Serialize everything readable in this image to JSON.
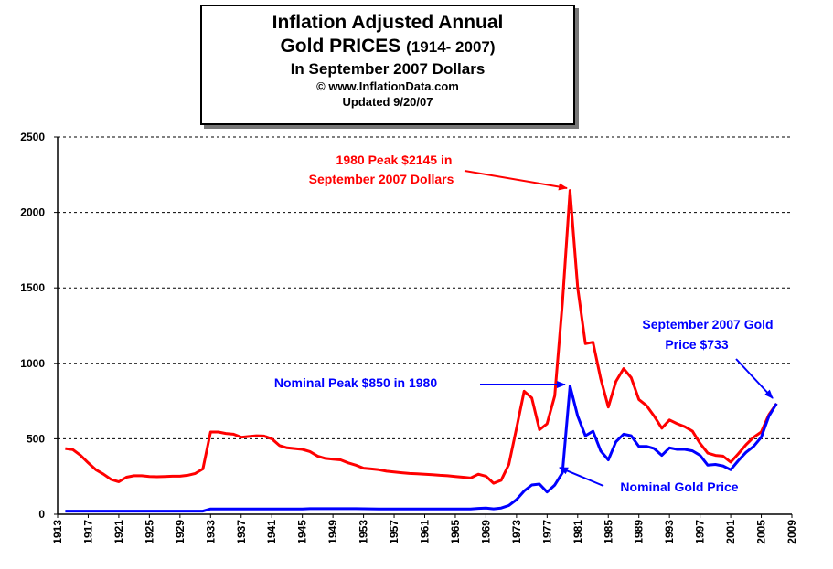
{
  "title": {
    "line1": "Inflation Adjusted Annual",
    "line2_main": "Gold PRICES",
    "line2_range": "(1914- 2007)",
    "line3": "In September 2007 Dollars",
    "line4": "© www.InflationData.com",
    "line5": "Updated 9/20/07"
  },
  "annotations": {
    "peak_real_1": "1980 Peak $2145 in",
    "peak_real_2": "September 2007 Dollars",
    "nominal_peak": "Nominal Peak $850 in 1980",
    "sept2007_1": "September 2007 Gold",
    "sept2007_2": "Price $733",
    "nominal_label": "Nominal Gold Price"
  },
  "colors": {
    "real": "#ff0000",
    "nominal": "#0000ff",
    "grid": "#000000",
    "axis": "#000000"
  },
  "chart_data": {
    "type": "line",
    "xlim": [
      1913,
      2009
    ],
    "ylim": [
      0,
      2500
    ],
    "x_ticks": [
      1913,
      1917,
      1921,
      1925,
      1929,
      1933,
      1937,
      1941,
      1945,
      1949,
      1953,
      1957,
      1961,
      1965,
      1969,
      1973,
      1977,
      1981,
      1985,
      1989,
      1993,
      1997,
      2001,
      2005,
      2009
    ],
    "y_ticks": [
      0,
      500,
      1000,
      1500,
      2000,
      2500
    ],
    "grid": "horizontal dashed",
    "series": [
      {
        "key": "real",
        "points": [
          [
            1914,
            435
          ],
          [
            1915,
            428
          ],
          [
            1916,
            390
          ],
          [
            1917,
            340
          ],
          [
            1918,
            295
          ],
          [
            1919,
            265
          ],
          [
            1920,
            230
          ],
          [
            1921,
            215
          ],
          [
            1922,
            245
          ],
          [
            1923,
            255
          ],
          [
            1924,
            255
          ],
          [
            1925,
            250
          ],
          [
            1926,
            248
          ],
          [
            1927,
            250
          ],
          [
            1928,
            252
          ],
          [
            1929,
            252
          ],
          [
            1930,
            258
          ],
          [
            1931,
            270
          ],
          [
            1932,
            300
          ],
          [
            1933,
            545
          ],
          [
            1934,
            545
          ],
          [
            1935,
            535
          ],
          [
            1936,
            530
          ],
          [
            1937,
            510
          ],
          [
            1938,
            515
          ],
          [
            1939,
            520
          ],
          [
            1940,
            518
          ],
          [
            1941,
            500
          ],
          [
            1942,
            455
          ],
          [
            1943,
            440
          ],
          [
            1944,
            435
          ],
          [
            1945,
            430
          ],
          [
            1946,
            415
          ],
          [
            1947,
            385
          ],
          [
            1948,
            370
          ],
          [
            1949,
            365
          ],
          [
            1950,
            360
          ],
          [
            1951,
            340
          ],
          [
            1952,
            325
          ],
          [
            1953,
            305
          ],
          [
            1954,
            300
          ],
          [
            1955,
            295
          ],
          [
            1956,
            285
          ],
          [
            1957,
            280
          ],
          [
            1958,
            275
          ],
          [
            1959,
            270
          ],
          [
            1960,
            268
          ],
          [
            1961,
            265
          ],
          [
            1962,
            262
          ],
          [
            1963,
            258
          ],
          [
            1964,
            255
          ],
          [
            1965,
            250
          ],
          [
            1966,
            245
          ],
          [
            1967,
            240
          ],
          [
            1968,
            265
          ],
          [
            1969,
            252
          ],
          [
            1970,
            205
          ],
          [
            1971,
            225
          ],
          [
            1972,
            330
          ],
          [
            1973,
            570
          ],
          [
            1974,
            815
          ],
          [
            1975,
            770
          ],
          [
            1976,
            560
          ],
          [
            1977,
            600
          ],
          [
            1978,
            785
          ],
          [
            1979,
            1400
          ],
          [
            1980,
            2145
          ],
          [
            1981,
            1500
          ],
          [
            1982,
            1130
          ],
          [
            1983,
            1140
          ],
          [
            1984,
            900
          ],
          [
            1985,
            710
          ],
          [
            1986,
            880
          ],
          [
            1987,
            965
          ],
          [
            1988,
            905
          ],
          [
            1989,
            760
          ],
          [
            1990,
            720
          ],
          [
            1991,
            650
          ],
          [
            1992,
            570
          ],
          [
            1993,
            625
          ],
          [
            1994,
            600
          ],
          [
            1995,
            580
          ],
          [
            1996,
            550
          ],
          [
            1997,
            470
          ],
          [
            1998,
            405
          ],
          [
            1999,
            390
          ],
          [
            2000,
            385
          ],
          [
            2001,
            345
          ],
          [
            2002,
            400
          ],
          [
            2003,
            460
          ],
          [
            2004,
            510
          ],
          [
            2005,
            545
          ],
          [
            2006,
            660
          ],
          [
            2007,
            733
          ]
        ]
      },
      {
        "key": "nominal",
        "points": [
          [
            1914,
            20.67
          ],
          [
            1920,
            20.67
          ],
          [
            1932,
            20.67
          ],
          [
            1933,
            35
          ],
          [
            1945,
            35
          ],
          [
            1946,
            37
          ],
          [
            1952,
            37
          ],
          [
            1955,
            35
          ],
          [
            1967,
            35
          ],
          [
            1968,
            39
          ],
          [
            1969,
            41
          ],
          [
            1970,
            36
          ],
          [
            1971,
            41
          ],
          [
            1972,
            58
          ],
          [
            1973,
            97
          ],
          [
            1974,
            154
          ],
          [
            1975,
            194
          ],
          [
            1976,
            200
          ],
          [
            1977,
            147
          ],
          [
            1978,
            193
          ],
          [
            1979,
            275
          ],
          [
            1980,
            850
          ],
          [
            1981,
            650
          ],
          [
            1982,
            520
          ],
          [
            1983,
            550
          ],
          [
            1984,
            420
          ],
          [
            1985,
            360
          ],
          [
            1986,
            480
          ],
          [
            1987,
            530
          ],
          [
            1988,
            520
          ],
          [
            1989,
            450
          ],
          [
            1990,
            450
          ],
          [
            1991,
            435
          ],
          [
            1992,
            390
          ],
          [
            1993,
            440
          ],
          [
            1994,
            430
          ],
          [
            1995,
            430
          ],
          [
            1996,
            420
          ],
          [
            1997,
            390
          ],
          [
            1998,
            325
          ],
          [
            1999,
            330
          ],
          [
            2000,
            320
          ],
          [
            2001,
            295
          ],
          [
            2002,
            355
          ],
          [
            2003,
            410
          ],
          [
            2004,
            450
          ],
          [
            2005,
            510
          ],
          [
            2006,
            650
          ],
          [
            2007,
            733
          ]
        ]
      }
    ]
  }
}
